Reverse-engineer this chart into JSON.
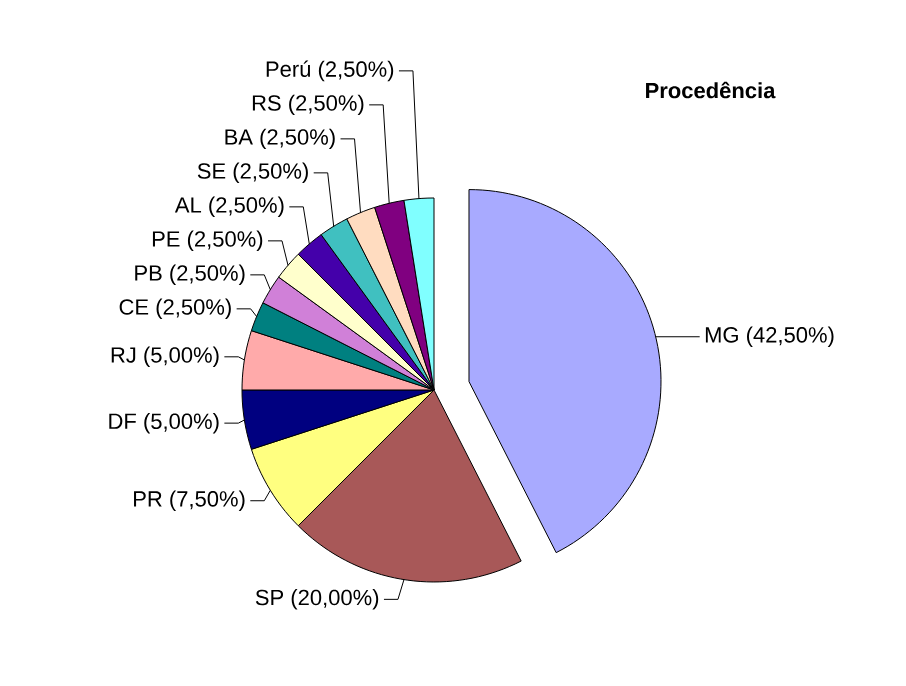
{
  "chart_data": {
    "type": "pie",
    "title": "Procedência",
    "categories": [
      "MG",
      "SP",
      "PR",
      "DF",
      "RJ",
      "CE",
      "PB",
      "PE",
      "AL",
      "SE",
      "BA",
      "RS",
      "Perú"
    ],
    "values": [
      42.5,
      20,
      7.5,
      5,
      5,
      2.5,
      2.5,
      2.5,
      2.5,
      2.5,
      2.5,
      2.5,
      2.5
    ],
    "value_labels": [
      "(42,50%)",
      "(20,00%)",
      "(7,50%)",
      "(5,00%)",
      "(5,00%)",
      "(2,50%)",
      "(2,50%)",
      "(2,50%)",
      "(2,50%)",
      "(2,50%)",
      "(2,50%)",
      "(2,50%)",
      "(2,50%)"
    ],
    "colors": [
      "#a8aaff",
      "#a85858",
      "#ffff80",
      "#000080",
      "#ffaaaa",
      "#008080",
      "#d080d8",
      "#ffffcc",
      "#4400aa",
      "#40c0c0",
      "#ffdcc0",
      "#800080",
      "#80ffff"
    ]
  }
}
